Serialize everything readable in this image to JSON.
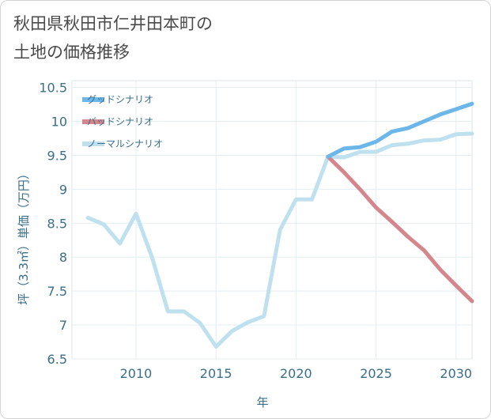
{
  "page": {
    "title": "秋田県秋田市仁井田本町の\n土地の価格推移"
  },
  "chart_data": {
    "type": "line",
    "title": "秋田県秋田市仁井田本町の土地の価格推移",
    "xlabel": "年",
    "ylabel": "坪（3.3㎡）単価（万円）",
    "xlim": [
      2006,
      2031
    ],
    "ylim": [
      6.5,
      10.6
    ],
    "x_ticks": [
      2010,
      2015,
      2020,
      2025,
      2030
    ],
    "x_tick_labels": [
      "2010",
      "2015",
      "2020",
      "2025",
      "2030"
    ],
    "y_ticks": [
      6.5,
      7,
      7.5,
      8,
      8.5,
      9,
      9.5,
      10,
      10.5
    ],
    "y_tick_labels": [
      "6.5",
      "7",
      "7.5",
      "8",
      "8.5",
      "9",
      "9.5",
      "10",
      "10.5"
    ],
    "grid": true,
    "legend_position": "top-left",
    "series": [
      {
        "name": "グッドシナリオ",
        "color": "#6cb6ea",
        "x": [
          2022,
          2023,
          2024,
          2025,
          2026,
          2027,
          2028,
          2029,
          2030,
          2031
        ],
        "y": [
          9.48,
          9.6,
          9.62,
          9.7,
          9.85,
          9.9,
          10.0,
          10.1,
          10.18,
          10.26
        ]
      },
      {
        "name": "バッドシナリオ",
        "color": "#d4868c",
        "x": [
          2022,
          2023,
          2024,
          2025,
          2026,
          2027,
          2028,
          2029,
          2030,
          2031
        ],
        "y": [
          9.48,
          9.25,
          9.0,
          8.73,
          8.52,
          8.3,
          8.1,
          7.82,
          7.58,
          7.35
        ]
      },
      {
        "name": "ノーマルシナリオ",
        "color": "#bfe0ee",
        "x": [
          2007,
          2008,
          2009,
          2010,
          2011,
          2012,
          2013,
          2014,
          2015,
          2016,
          2017,
          2018,
          2019,
          2020,
          2021,
          2022,
          2023,
          2024,
          2025,
          2026,
          2027,
          2028,
          2029,
          2030,
          2031
        ],
        "y": [
          8.58,
          8.48,
          8.2,
          8.64,
          8.0,
          7.2,
          7.2,
          7.03,
          6.68,
          6.91,
          7.04,
          7.13,
          8.4,
          8.85,
          8.85,
          9.48,
          9.47,
          9.55,
          9.55,
          9.65,
          9.67,
          9.72,
          9.73,
          9.81,
          9.82
        ]
      }
    ]
  }
}
